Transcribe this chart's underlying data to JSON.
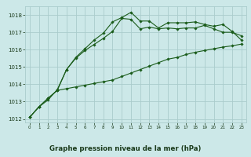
{
  "title": "Graphe pression niveau de la mer (hPa)",
  "background_color": "#cce8e8",
  "grid_color": "#aacccc",
  "line_color": "#1a5c1a",
  "xlim": [
    -0.5,
    23.5
  ],
  "ylim": [
    1011.8,
    1018.5
  ],
  "yticks": [
    1012,
    1013,
    1014,
    1015,
    1016,
    1017,
    1018
  ],
  "xticks": [
    0,
    1,
    2,
    3,
    4,
    5,
    6,
    7,
    8,
    9,
    10,
    11,
    12,
    13,
    14,
    15,
    16,
    17,
    18,
    19,
    20,
    21,
    22,
    23
  ],
  "series": [
    {
      "x": [
        0,
        1,
        2,
        3,
        4,
        5,
        6,
        7,
        8,
        9,
        10,
        11,
        12,
        13,
        14,
        15,
        16,
        17,
        18,
        19,
        20,
        21,
        22,
        23
      ],
      "y": [
        1012.1,
        1012.7,
        1013.1,
        1013.7,
        1014.85,
        1015.5,
        1015.95,
        1016.3,
        1016.65,
        1017.05,
        1017.8,
        1017.75,
        1017.2,
        1017.3,
        1017.2,
        1017.25,
        1017.2,
        1017.25,
        1017.25,
        1017.4,
        1017.2,
        1017.0,
        1017.0,
        1016.8
      ]
    },
    {
      "x": [
        0,
        1,
        2,
        3,
        4,
        5,
        6,
        7,
        8,
        9,
        10,
        11,
        12,
        13,
        14,
        15,
        16,
        17,
        18,
        19,
        20,
        21,
        22,
        23
      ],
      "y": [
        1012.1,
        1012.7,
        1013.2,
        1013.65,
        1014.85,
        1015.55,
        1016.05,
        1016.55,
        1016.95,
        1017.6,
        1017.85,
        1018.15,
        1017.65,
        1017.65,
        1017.25,
        1017.55,
        1017.55,
        1017.55,
        1017.6,
        1017.45,
        1017.35,
        1017.45,
        1017.05,
        1016.55
      ]
    },
    {
      "x": [
        0,
        1,
        2,
        3,
        4,
        5,
        6,
        7,
        8,
        9,
        10,
        11,
        12,
        13,
        14,
        15,
        16,
        17,
        18,
        19,
        20,
        21,
        22,
        23
      ],
      "y": [
        1012.1,
        1012.7,
        1013.2,
        1013.65,
        1013.75,
        1013.85,
        1013.95,
        1014.05,
        1014.15,
        1014.25,
        1014.45,
        1014.65,
        1014.85,
        1015.05,
        1015.25,
        1015.45,
        1015.55,
        1015.72,
        1015.85,
        1015.95,
        1016.05,
        1016.15,
        1016.22,
        1016.32
      ]
    }
  ]
}
